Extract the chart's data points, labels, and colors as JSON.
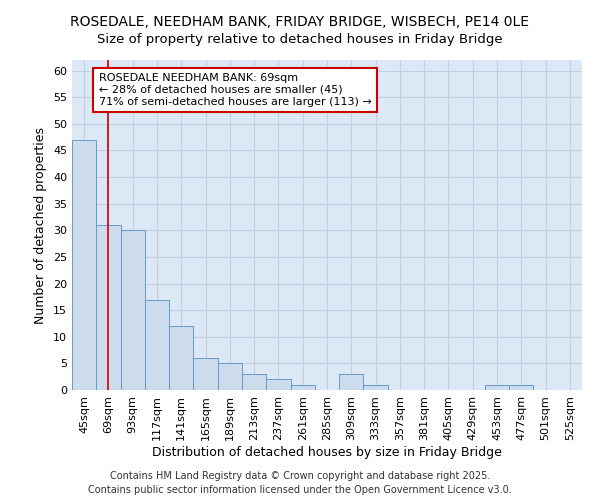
{
  "title": "ROSEDALE, NEEDHAM BANK, FRIDAY BRIDGE, WISBECH, PE14 0LE",
  "subtitle": "Size of property relative to detached houses in Friday Bridge",
  "xlabel": "Distribution of detached houses by size in Friday Bridge",
  "ylabel": "Number of detached properties",
  "categories": [
    "45sqm",
    "69sqm",
    "93sqm",
    "117sqm",
    "141sqm",
    "165sqm",
    "189sqm",
    "213sqm",
    "237sqm",
    "261sqm",
    "285sqm",
    "309sqm",
    "333sqm",
    "357sqm",
    "381sqm",
    "405sqm",
    "429sqm",
    "453sqm",
    "477sqm",
    "501sqm",
    "525sqm"
  ],
  "values": [
    47,
    31,
    30,
    17,
    12,
    6,
    5,
    3,
    2,
    1,
    0,
    3,
    1,
    0,
    0,
    0,
    0,
    1,
    1,
    0,
    0
  ],
  "bar_color": "#ccdcec",
  "bar_edge_color": "#6699cc",
  "vline_x_index": 1,
  "vline_color": "#cc0000",
  "annotation_line1": "ROSEDALE NEEDHAM BANK: 69sqm",
  "annotation_line2": "← 28% of detached houses are smaller (45)",
  "annotation_line3": "71% of semi-detached houses are larger (113) →",
  "annotation_box_color": "#ffffff",
  "annotation_box_edge": "#cc0000",
  "ylim": [
    0,
    62
  ],
  "yticks": [
    0,
    5,
    10,
    15,
    20,
    25,
    30,
    35,
    40,
    45,
    50,
    55,
    60
  ],
  "footer_line1": "Contains HM Land Registry data © Crown copyright and database right 2025.",
  "footer_line2": "Contains public sector information licensed under the Open Government Licence v3.0.",
  "background_color": "#dce8f5",
  "grid_color": "#c0d0e0",
  "title_fontsize": 10,
  "subtitle_fontsize": 9.5,
  "axis_label_fontsize": 9,
  "tick_fontsize": 8,
  "annotation_fontsize": 8,
  "footer_fontsize": 7
}
